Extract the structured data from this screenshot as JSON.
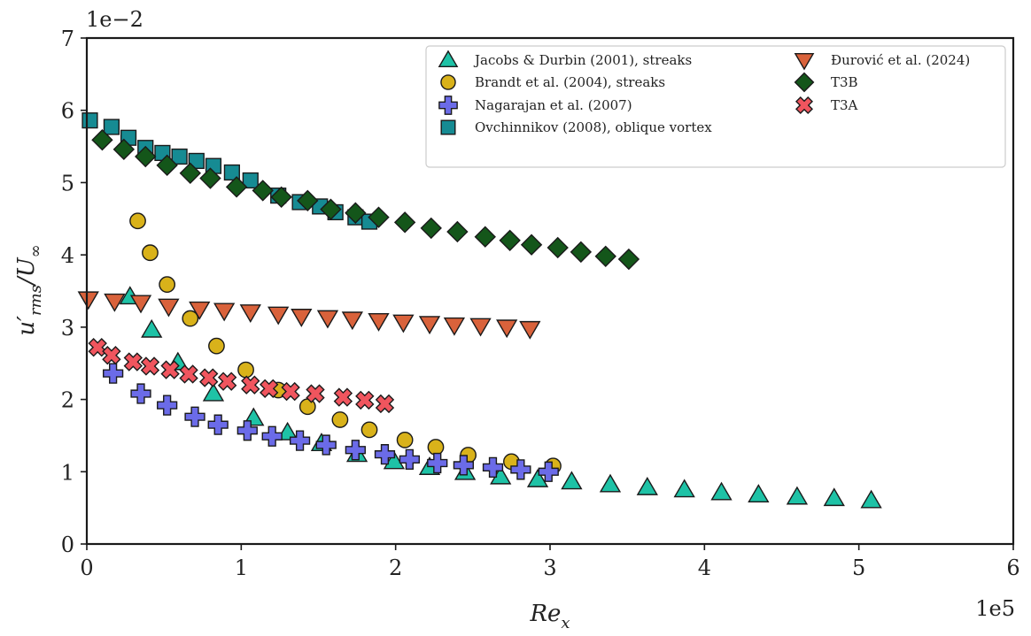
{
  "chart_data": {
    "type": "scatter",
    "title": "",
    "xlabel": "Re",
    "xlabel_sub": "x",
    "ylabel": "u′",
    "ylabel_sub": "rms",
    "ylabel_tail": "/U",
    "ylabel_tail_sub": "∞",
    "xlim": [
      0,
      600000
    ],
    "ylim": [
      0,
      0.07
    ],
    "x_offset_text": "1e5",
    "y_offset_text": "1e−2",
    "x_ticks": [
      0,
      100000,
      200000,
      300000,
      400000,
      500000,
      600000
    ],
    "x_tick_labels": [
      "0",
      "1",
      "2",
      "3",
      "4",
      "5",
      "6"
    ],
    "y_ticks": [
      0,
      0.01,
      0.02,
      0.03,
      0.04,
      0.05,
      0.06,
      0.07
    ],
    "y_tick_labels": [
      "0",
      "1",
      "2",
      "3",
      "4",
      "5",
      "6",
      "7"
    ],
    "legend_position": "top-right",
    "series": [
      {
        "name": "Jacobs & Durbin (2001), streaks",
        "marker": "triangle-up",
        "color": "#1ec2a6",
        "x": [
          28000,
          42000,
          59000,
          82000,
          108000,
          130000,
          152000,
          175000,
          199000,
          222000,
          245000,
          268000,
          292000,
          314000,
          339000,
          363000,
          387000,
          411000,
          435000,
          460000,
          484000,
          508000
        ],
        "y": [
          0.0342,
          0.0296,
          0.0251,
          0.0208,
          0.0174,
          0.0154,
          0.0139,
          0.0124,
          0.0114,
          0.0106,
          0.0099,
          0.0093,
          0.0089,
          0.0086,
          0.0082,
          0.0078,
          0.0075,
          0.0071,
          0.0068,
          0.0065,
          0.0063,
          0.006
        ]
      },
      {
        "name": "Brandt et al. (2004), streaks",
        "marker": "circle",
        "color": "#d9b21a",
        "x": [
          33000,
          41000,
          52000,
          67000,
          84000,
          103000,
          124000,
          143000,
          164000,
          183000,
          206000,
          226000,
          247000,
          275000,
          302000
        ],
        "y": [
          0.0447,
          0.0403,
          0.0359,
          0.0312,
          0.0274,
          0.0241,
          0.0213,
          0.019,
          0.0172,
          0.0158,
          0.0144,
          0.0134,
          0.0123,
          0.0114,
          0.0108
        ]
      },
      {
        "name": "Nagarajan et al. (2007)",
        "marker": "plus",
        "color": "#6b6be8",
        "x": [
          17000,
          35000,
          52000,
          70000,
          85000,
          104000,
          120000,
          138000,
          155000,
          174000,
          193000,
          209000,
          227000,
          244000,
          263000,
          281000,
          299000
        ],
        "y": [
          0.0236,
          0.0208,
          0.0192,
          0.0176,
          0.0165,
          0.0157,
          0.0149,
          0.0143,
          0.0137,
          0.013,
          0.0124,
          0.0117,
          0.0112,
          0.0109,
          0.0106,
          0.0103,
          0.01
        ]
      },
      {
        "name": "Ovchinnikov (2008), oblique vortex",
        "marker": "square",
        "color": "#168b93",
        "x": [
          2000,
          16000,
          27000,
          38000,
          49000,
          60000,
          71000,
          82000,
          94000,
          106000,
          124000,
          138000,
          151000,
          161000,
          174000,
          183000
        ],
        "y": [
          0.0586,
          0.0577,
          0.0562,
          0.0548,
          0.0541,
          0.0536,
          0.053,
          0.0523,
          0.0514,
          0.0503,
          0.0482,
          0.0473,
          0.0467,
          0.0459,
          0.0452,
          0.0446
        ]
      },
      {
        "name": "Đurović et al. (2024)",
        "marker": "triangle-down",
        "color": "#d9623b",
        "x": [
          1000,
          18000,
          35000,
          53000,
          73000,
          89000,
          106000,
          124000,
          139000,
          156000,
          172000,
          189000,
          205000,
          222000,
          238000,
          255000,
          272000,
          287000
        ],
        "y": [
          0.0339,
          0.0336,
          0.0334,
          0.0329,
          0.0325,
          0.0323,
          0.0321,
          0.0318,
          0.0315,
          0.0313,
          0.0311,
          0.0309,
          0.0307,
          0.0305,
          0.0303,
          0.0302,
          0.03,
          0.0298
        ]
      },
      {
        "name": "T3B",
        "marker": "diamond",
        "color": "#14561a",
        "x": [
          10000,
          24000,
          38000,
          52000,
          67000,
          80000,
          97000,
          114000,
          126000,
          143000,
          158000,
          174000,
          189000,
          206000,
          223000,
          240000,
          258000,
          274000,
          288000,
          305000,
          320000,
          336000,
          351000
        ],
        "y": [
          0.0559,
          0.0546,
          0.0536,
          0.0524,
          0.0513,
          0.0506,
          0.0494,
          0.0489,
          0.048,
          0.0475,
          0.0463,
          0.0458,
          0.0452,
          0.0445,
          0.0437,
          0.0432,
          0.0425,
          0.042,
          0.0414,
          0.041,
          0.0404,
          0.0398,
          0.0394
        ]
      },
      {
        "name": "T3A",
        "marker": "x",
        "color": "#f0555e",
        "x": [
          7000,
          16000,
          30000,
          41000,
          54000,
          66000,
          79000,
          91000,
          106000,
          118000,
          132000,
          148000,
          166000,
          180000,
          193000
        ],
        "y": [
          0.0272,
          0.0261,
          0.0252,
          0.0246,
          0.0241,
          0.0235,
          0.023,
          0.0225,
          0.022,
          0.0215,
          0.0211,
          0.0208,
          0.0203,
          0.0199,
          0.0194
        ]
      }
    ],
    "legend_columns": [
      [
        "Jacobs & Durbin (2001), streaks",
        "Brandt et al. (2004), streaks",
        "Nagarajan et al. (2007)",
        "Ovchinnikov (2008), oblique vortex"
      ],
      [
        "Đurović et al. (2024)",
        "T3B",
        "T3A"
      ]
    ]
  }
}
